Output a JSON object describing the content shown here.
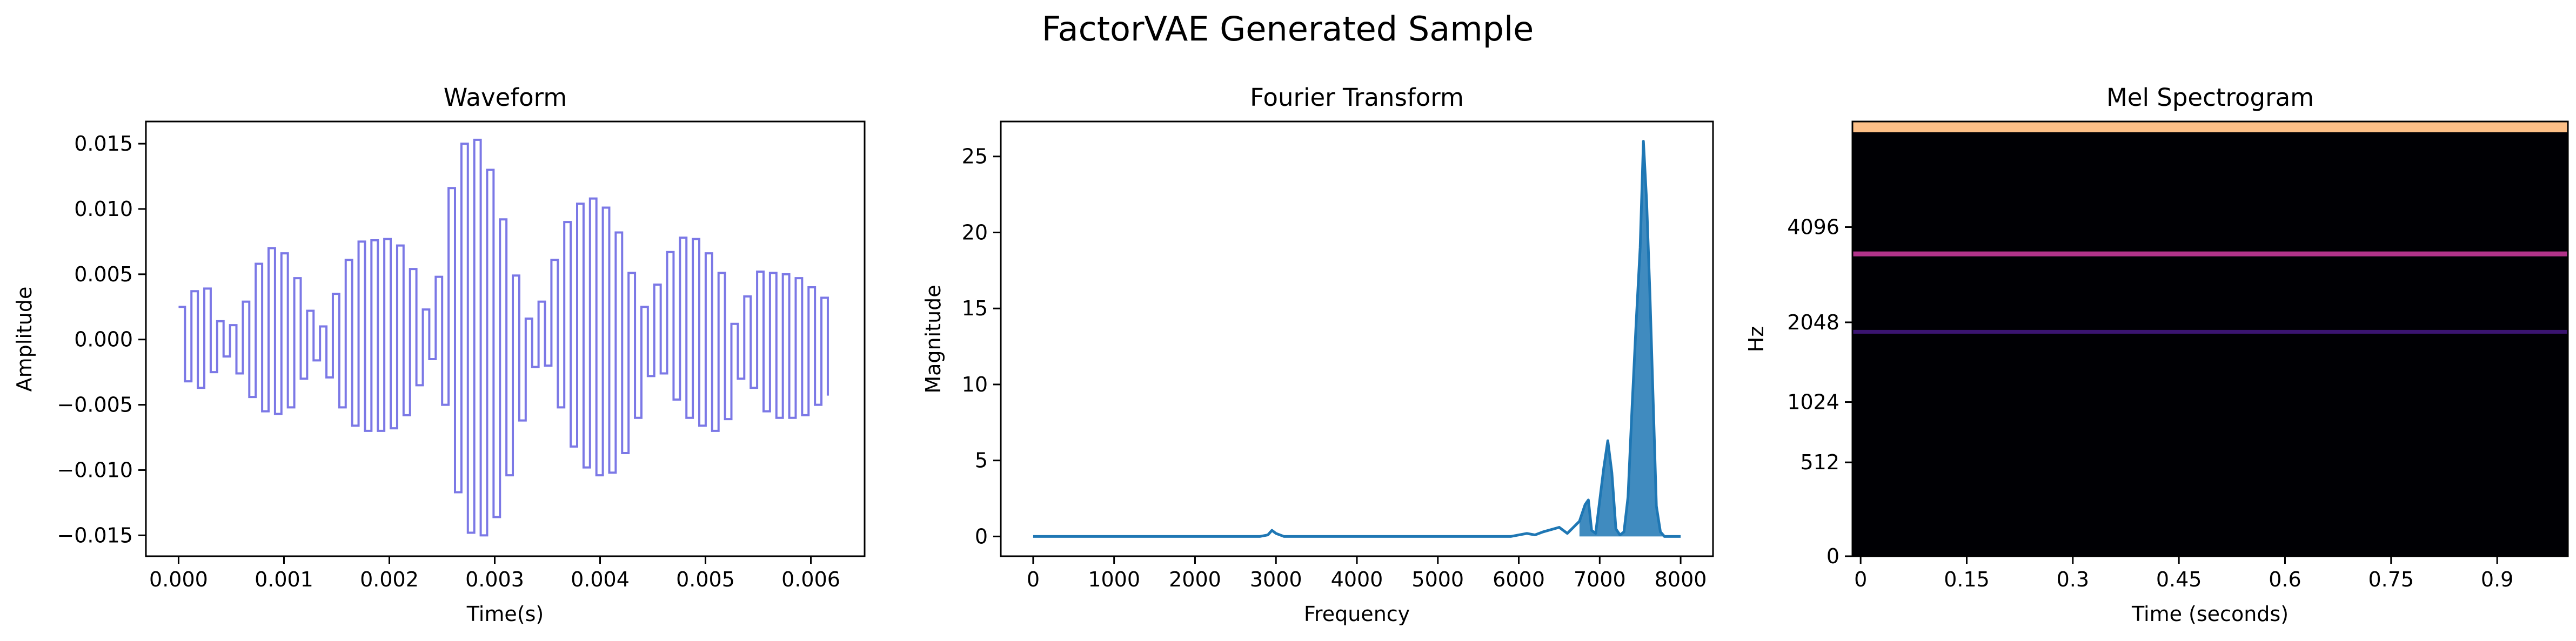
{
  "figure": {
    "title": "FactorVAE Generated Sample"
  },
  "chart_data": [
    {
      "type": "line",
      "title": "Waveform",
      "xlabel": "Time(s)",
      "ylabel": "Amplitude",
      "xlim": [
        -0.00031,
        0.00651
      ],
      "ylim": [
        -0.0166,
        0.0167
      ],
      "grid": false,
      "line_color": "#7b78e6",
      "drawstyle": "steps",
      "x_ticks": [
        0,
        0.001,
        0.002,
        0.003,
        0.004,
        0.005,
        0.006
      ],
      "x_tick_labels": [
        "0.000",
        "0.001",
        "0.002",
        "0.003",
        "0.004",
        "0.005",
        "0.006"
      ],
      "y_ticks": [
        0.015,
        0.01,
        0.005,
        0,
        -0.005,
        -0.01,
        -0.015
      ],
      "y_tick_labels": [
        "0.015",
        "0.010",
        "0.005",
        "0.000",
        "−0.005",
        "−0.010",
        "−0.015"
      ],
      "series": [
        {
          "x": [
            0,
            0.000122,
            0.000244,
            0.000366,
            0.000488,
            0.00061,
            0.000732,
            0.000854,
            0.000976,
            0.001098,
            0.00122,
            0.001342,
            0.001464,
            0.001586,
            0.001708,
            0.00183,
            0.001952,
            0.002074,
            0.002196,
            0.002318,
            0.00244,
            0.002562,
            0.002684,
            0.002806,
            0.002928,
            0.00305,
            0.003172,
            0.003294,
            0.003416,
            0.003538,
            0.00366,
            0.003782,
            0.003904,
            0.004026,
            0.004148,
            0.00427,
            0.004392,
            0.004514,
            0.004636,
            0.004758,
            0.00488,
            0.005002,
            0.005124,
            0.005246,
            0.005368,
            0.00549,
            0.005612,
            0.005734,
            0.005856,
            0.005978,
            0.0061
          ],
          "y": [
            0.0025,
            0.0037,
            0.0039,
            0.0014,
            0.0011,
            0.0029,
            0.0058,
            0.007,
            0.0066,
            0.0047,
            0.0022,
            0.001,
            0.0035,
            0.0061,
            0.0075,
            0.0076,
            0.0077,
            0.0072,
            0.0054,
            0.0023,
            0.0048,
            0.0116,
            0.015,
            0.0153,
            0.013,
            0.0092,
            0.0049,
            0.0016,
            0.0029,
            0.0061,
            0.009,
            0.0104,
            0.0108,
            0.0101,
            0.0082,
            0.0051,
            0.0025,
            0.0042,
            0.0067,
            0.0078,
            0.0077,
            0.0066,
            0.0051,
            0.0012,
            0.0033,
            0.0052,
            0.0051,
            0.005,
            0.0047,
            0.004,
            0.0032
          ],
          "y_lo": [
            -0.0032,
            -0.0037,
            -0.0025,
            -0.0013,
            -0.0026,
            -0.0044,
            -0.0055,
            -0.0057,
            -0.0052,
            -0.003,
            -0.0016,
            -0.0029,
            -0.0052,
            -0.0066,
            -0.007,
            -0.007,
            -0.0068,
            -0.0058,
            -0.0035,
            -0.0015,
            -0.005,
            -0.0117,
            -0.0148,
            -0.015,
            -0.0136,
            -0.0104,
            -0.0062,
            -0.0021,
            -0.002,
            -0.0052,
            -0.0082,
            -0.0098,
            -0.0104,
            -0.0102,
            -0.0087,
            -0.006,
            -0.0028,
            -0.0026,
            -0.0046,
            -0.006,
            -0.0066,
            -0.007,
            -0.0061,
            -0.003,
            -0.0037,
            -0.0055,
            -0.006,
            -0.006,
            -0.0058,
            -0.005,
            -0.0043
          ]
        }
      ]
    },
    {
      "type": "line",
      "title": "Fourier Transform",
      "xlabel": "Frequency",
      "ylabel": "Magnitude",
      "xlim": [
        -400,
        8400
      ],
      "ylim": [
        -1.3,
        27.3
      ],
      "grid": false,
      "line_color": "#1f77b4",
      "x_ticks": [
        0,
        1000,
        2000,
        3000,
        4000,
        5000,
        6000,
        7000,
        8000
      ],
      "y_ticks": [
        0,
        5,
        10,
        15,
        20,
        25
      ],
      "series": [
        {
          "x": [
            0,
            2800,
            2900,
            2950,
            3000,
            3100,
            5900,
            6100,
            6200,
            6300,
            6500,
            6600,
            6750,
            6820,
            6860,
            6900,
            6950,
            7050,
            7100,
            7150,
            7200,
            7250,
            7300,
            7350,
            7400,
            7450,
            7500,
            7540,
            7580,
            7620,
            7660,
            7700,
            7750,
            7800,
            8000
          ],
          "y": [
            0,
            0,
            0.1,
            0.4,
            0.2,
            0,
            0,
            0.2,
            0.1,
            0.3,
            0.6,
            0.2,
            1.0,
            2.1,
            2.4,
            0.4,
            0.2,
            4.5,
            6.3,
            4.2,
            0.5,
            0.1,
            0.3,
            2.6,
            8.5,
            14,
            19,
            26,
            22,
            16,
            9,
            2,
            0.3,
            0,
            0
          ]
        }
      ]
    },
    {
      "type": "heatmap",
      "title": "Mel Spectrogram",
      "xlabel": "Time (seconds)",
      "ylabel": "Hz",
      "xlim": [
        -0.0116,
        1.0
      ],
      "colormap": "magma",
      "x_ticks": [
        0,
        0.15,
        0.3,
        0.45,
        0.6,
        0.75,
        0.9
      ],
      "x_tick_labels": [
        "0",
        "0.15",
        "0.3",
        "0.45",
        "0.6",
        "0.75",
        "0.9"
      ],
      "y_ticks": [
        0,
        512,
        1024,
        2048,
        4096
      ],
      "y_tick_labels": [
        "0",
        "512",
        "1024",
        "2048",
        "4096"
      ],
      "y_scale": "mel",
      "bands": [
        {
          "hz": 8000,
          "level": "bright",
          "color": "#fcbf87"
        },
        {
          "hz": 3400,
          "level": "medium",
          "color": "#b1338a"
        },
        {
          "hz": 1900,
          "level": "faint",
          "color": "#3a1470"
        }
      ]
    }
  ]
}
